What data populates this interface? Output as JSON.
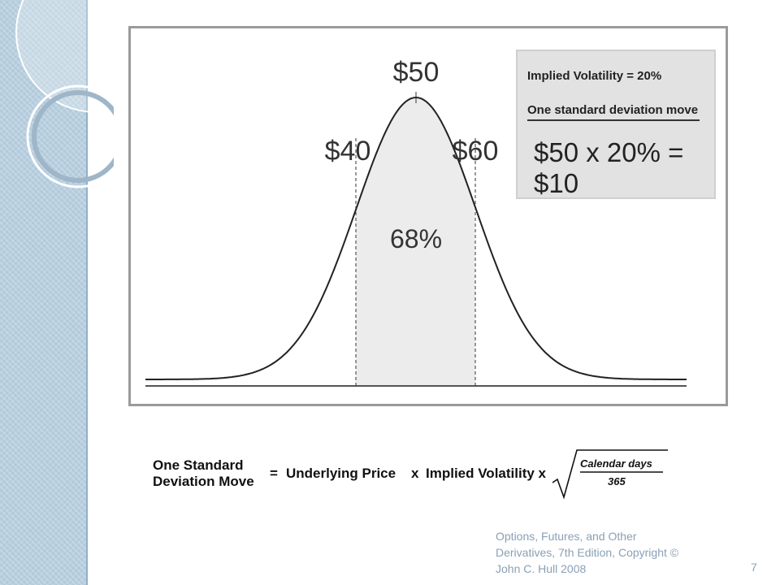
{
  "figure": {
    "peak_label": "$50",
    "left_label": "$40",
    "right_label": "$60",
    "area_label": "68%",
    "info_box": {
      "line1": "Implied Volatility = 20%",
      "line2": "One standard deviation move",
      "line3": "$50 x 20% = $10"
    }
  },
  "formula": {
    "lhs_line1": "One Standard",
    "lhs_line2": "Deviation Move",
    "equals": "=",
    "underlying_price": "Underlying Price",
    "times1": "x",
    "implied_volatility": "Implied Volatility x",
    "numerator": "Calendar days",
    "denominator": "365"
  },
  "footer": {
    "line1": "Options, Futures, and Other",
    "line2": "Derivatives, 7th Edition, Copyright ©",
    "line3": "John C. Hull 2008",
    "page_number": "7"
  },
  "colors": {
    "side_band": "#b8cfdf",
    "shaded_area": "#ececec",
    "footer_text": "#8aa0b6"
  }
}
